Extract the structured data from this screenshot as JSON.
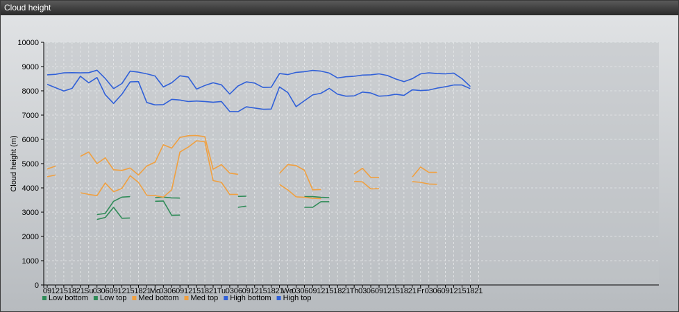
{
  "window": {
    "title": "Cloud height"
  },
  "chart_data": {
    "type": "line",
    "title": "",
    "xlabel": "",
    "ylabel": "Cloud height (m)",
    "ylim": [
      0,
      10000
    ],
    "yticks": [
      0,
      1000,
      2000,
      3000,
      4000,
      5000,
      6000,
      7000,
      8000,
      9000,
      10000
    ],
    "grid": true,
    "legend_position": "bottom-left",
    "x_tick_labels": [
      "09",
      "12",
      "15",
      "18",
      "21",
      "Su",
      "03",
      "06",
      "09",
      "12",
      "15",
      "18",
      "21",
      "Mo",
      "03",
      "06",
      "09",
      "12",
      "15",
      "18",
      "21",
      "Tu",
      "03",
      "06",
      "09",
      "12",
      "15",
      "18",
      "21",
      "We",
      "03",
      "06",
      "09",
      "12",
      "15",
      "18",
      "21",
      "Th",
      "03",
      "06",
      "09",
      "12",
      "15",
      "18",
      "21",
      "Fr",
      "03",
      "06",
      "09",
      "12",
      "15",
      "18",
      "21"
    ],
    "series": [
      {
        "name": "Low bottom",
        "color": "#2e8b57",
        "values": [
          null,
          null,
          null,
          null,
          null,
          null,
          2700,
          2780,
          3200,
          2750,
          2760,
          null,
          null,
          3450,
          3460,
          2870,
          2880,
          null,
          null,
          null,
          null,
          null,
          null,
          3200,
          3250,
          null,
          null,
          null,
          null,
          null,
          null,
          3200,
          3200,
          3430,
          3430,
          null,
          null,
          null,
          null,
          null,
          null,
          null,
          null,
          null,
          null,
          null,
          null,
          null,
          null,
          null,
          null,
          null,
          null
        ]
      },
      {
        "name": "Low top",
        "color": "#2e8b57",
        "values": [
          null,
          null,
          null,
          null,
          null,
          null,
          2900,
          2950,
          3450,
          3620,
          3640,
          null,
          null,
          3600,
          3620,
          3590,
          3580,
          null,
          null,
          null,
          null,
          null,
          null,
          3650,
          3660,
          null,
          null,
          null,
          null,
          null,
          null,
          3640,
          3640,
          3610,
          3600,
          null,
          null,
          null,
          null,
          null,
          null,
          null,
          null,
          null,
          null,
          null,
          null,
          null,
          null,
          null,
          null,
          null,
          null
        ]
      },
      {
        "name": "Med bottom",
        "color": "#f0a040",
        "values": [
          4460,
          4530,
          null,
          null,
          3800,
          3730,
          3680,
          4200,
          3840,
          3980,
          4500,
          4230,
          3700,
          3680,
          3620,
          3920,
          5480,
          5680,
          5940,
          5900,
          4300,
          4230,
          3730,
          3730,
          null,
          null,
          null,
          null,
          4140,
          3920,
          3630,
          3610,
          3570,
          3560,
          null,
          null,
          null,
          4270,
          4250,
          3960,
          3970,
          null,
          null,
          null,
          4260,
          4230,
          4160,
          4150,
          null,
          null,
          null,
          null,
          null
        ]
      },
      {
        "name": "Med top",
        "color": "#f0a040",
        "values": [
          4780,
          4900,
          null,
          null,
          5300,
          5480,
          5000,
          5240,
          4750,
          4720,
          4820,
          4530,
          4900,
          5060,
          5780,
          5640,
          6080,
          6150,
          6160,
          6110,
          4770,
          4960,
          4610,
          4560,
          null,
          null,
          null,
          null,
          4600,
          4960,
          4920,
          4730,
          3920,
          3930,
          null,
          null,
          null,
          4570,
          4810,
          4430,
          4430,
          null,
          null,
          null,
          4450,
          4860,
          4640,
          4640,
          null,
          null,
          null,
          null,
          null
        ]
      },
      {
        "name": "High bottom",
        "color": "#3060d8",
        "values": [
          8270,
          8130,
          7990,
          8100,
          8600,
          8330,
          8550,
          7840,
          7480,
          7860,
          8370,
          8380,
          7520,
          7420,
          7430,
          7650,
          7620,
          7560,
          7580,
          7560,
          7530,
          7560,
          7150,
          7140,
          7340,
          7290,
          7240,
          7250,
          8160,
          7930,
          7350,
          7590,
          7830,
          7900,
          8100,
          7860,
          7780,
          7790,
          7950,
          7910,
          7780,
          7800,
          7860,
          7810,
          8040,
          8010,
          8030,
          8110,
          8170,
          8240,
          8240,
          8090,
          null
        ]
      },
      {
        "name": "High top",
        "color": "#3060d8",
        "values": [
          8660,
          8680,
          8740,
          8750,
          8740,
          8750,
          8850,
          8510,
          8090,
          8300,
          8810,
          8770,
          8700,
          8610,
          8160,
          8330,
          8620,
          8570,
          8070,
          8220,
          8330,
          8250,
          7870,
          8200,
          8370,
          8320,
          8140,
          8150,
          8710,
          8670,
          8760,
          8790,
          8840,
          8810,
          8730,
          8530,
          8580,
          8600,
          8650,
          8660,
          8700,
          8630,
          8490,
          8380,
          8500,
          8700,
          8740,
          8710,
          8700,
          8730,
          8500,
          8180,
          null
        ]
      }
    ]
  }
}
